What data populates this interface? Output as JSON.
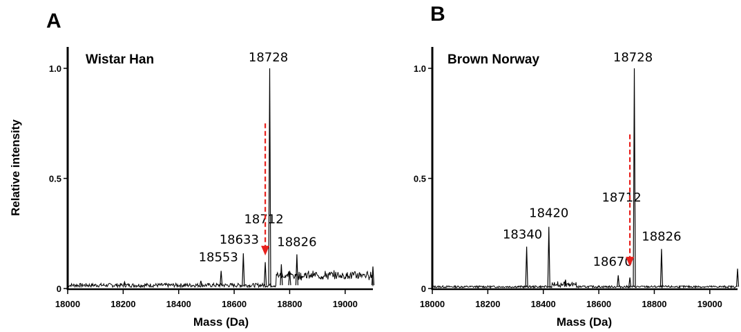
{
  "ylabel_shared": "Relative intensity",
  "chart_data": [
    {
      "type": "line",
      "panel": "A",
      "title": "Wistar Han",
      "xlabel": "Mass (Da)",
      "xlim": [
        18000,
        19100
      ],
      "ylim": [
        0,
        1.0
      ],
      "xticks": [
        18000,
        18200,
        18400,
        18600,
        18800,
        19000
      ],
      "yticks": [
        0,
        0.5,
        1.0
      ],
      "ytick_labels": [
        "0",
        "0.5",
        "1.0"
      ],
      "baseline_level": 0.015,
      "peaks": [
        {
          "mass": 18205,
          "intensity": 0.03,
          "label": ""
        },
        {
          "mass": 18480,
          "intensity": 0.035,
          "label": ""
        },
        {
          "mass": 18553,
          "intensity": 0.08,
          "label": "18553"
        },
        {
          "mass": 18633,
          "intensity": 0.16,
          "label": "18633"
        },
        {
          "mass": 18712,
          "intensity": 0.12,
          "label": "18712"
        },
        {
          "mass": 18728,
          "intensity": 1.0,
          "label": "18728"
        },
        {
          "mass": 18770,
          "intensity": 0.11,
          "label": ""
        },
        {
          "mass": 18800,
          "intensity": 0.08,
          "label": ""
        },
        {
          "mass": 18826,
          "intensity": 0.155,
          "label": "18826"
        },
        {
          "mass": 19100,
          "intensity": 0.1,
          "label": ""
        }
      ],
      "arrow": {
        "mass": 18712,
        "from": 0.75,
        "to": 0.15,
        "color": "#e8201c"
      }
    },
    {
      "type": "line",
      "panel": "B",
      "title": "Brown Norway",
      "xlabel": "Mass (Da)",
      "xlim": [
        18000,
        19100
      ],
      "ylim": [
        0,
        1.0
      ],
      "xticks": [
        18000,
        18200,
        18400,
        18600,
        18800,
        19000
      ],
      "yticks": [
        0,
        0.5,
        1.0
      ],
      "ytick_labels": [
        "0",
        "0.5",
        "1.0"
      ],
      "baseline_level": 0.008,
      "peaks": [
        {
          "mass": 18340,
          "intensity": 0.19,
          "label": "18340"
        },
        {
          "mass": 18420,
          "intensity": 0.28,
          "label": "18420"
        },
        {
          "mass": 18480,
          "intensity": 0.04,
          "label": ""
        },
        {
          "mass": 18670,
          "intensity": 0.06,
          "label": "18670"
        },
        {
          "mass": 18712,
          "intensity": 0.05,
          "label": "18712"
        },
        {
          "mass": 18728,
          "intensity": 1.0,
          "label": "18728"
        },
        {
          "mass": 18826,
          "intensity": 0.18,
          "label": "18826"
        },
        {
          "mass": 19100,
          "intensity": 0.09,
          "label": ""
        }
      ],
      "arrow": {
        "mass": 18712,
        "from": 0.7,
        "to": 0.1,
        "color": "#e8201c"
      }
    }
  ]
}
